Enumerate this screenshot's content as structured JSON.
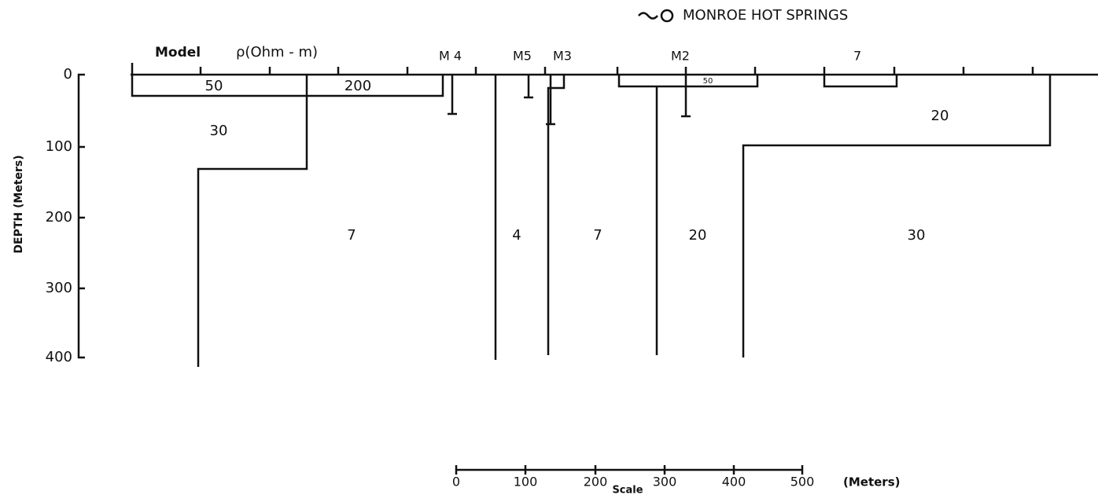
{
  "title": "MONROE HOT SPRINGS",
  "header": {
    "model": "Model",
    "rho": "ρ(Ohm - m)"
  },
  "stations": [
    "M 4",
    "M5",
    "M3",
    "M2",
    "7"
  ],
  "depth_axis": {
    "label": "DEPTH (Meters)",
    "ticks": [
      "0",
      "100",
      "200",
      "300",
      "400"
    ]
  },
  "regions": [
    "50",
    "200",
    "30",
    "7",
    "4",
    "7",
    "20",
    "30",
    "20",
    "50"
  ],
  "scale": {
    "ticks": [
      "0",
      "100",
      "200",
      "300",
      "400",
      "500"
    ],
    "unit": "(Meters)",
    "label": "Scale"
  }
}
